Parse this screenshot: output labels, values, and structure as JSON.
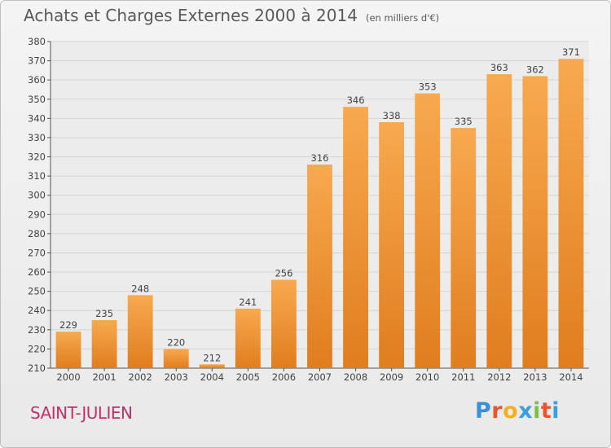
{
  "chart_data": {
    "type": "bar",
    "title": "Achats et Charges Externes 2000 à 2014",
    "subtitle": "(en milliers d'€)",
    "xlabel": "",
    "ylabel": "",
    "categories": [
      "2000",
      "2001",
      "2002",
      "2003",
      "2004",
      "2005",
      "2006",
      "2007",
      "2008",
      "2009",
      "2010",
      "2011",
      "2012",
      "2013",
      "2014"
    ],
    "values": [
      229,
      235,
      248,
      220,
      212,
      241,
      256,
      316,
      346,
      338,
      353,
      335,
      363,
      362,
      371
    ],
    "ylim": [
      210,
      380
    ],
    "yticks": [
      210,
      220,
      230,
      240,
      250,
      260,
      270,
      280,
      290,
      300,
      310,
      320,
      330,
      340,
      350,
      360,
      370,
      380
    ],
    "grid": true,
    "bar_color_light": "#f8a94f",
    "bar_color_dark": "#e07d1f"
  },
  "footer": {
    "place": "SAINT-JULIEN",
    "logo_letters": [
      "P",
      "r",
      "o",
      "x",
      "i",
      "t",
      "i"
    ],
    "logo_colors": [
      "#3a8fd6",
      "#e8552e",
      "#f2b020",
      "#3aa0dc",
      "#7cc04a",
      "#e8552e",
      "#3aa0dc"
    ]
  }
}
